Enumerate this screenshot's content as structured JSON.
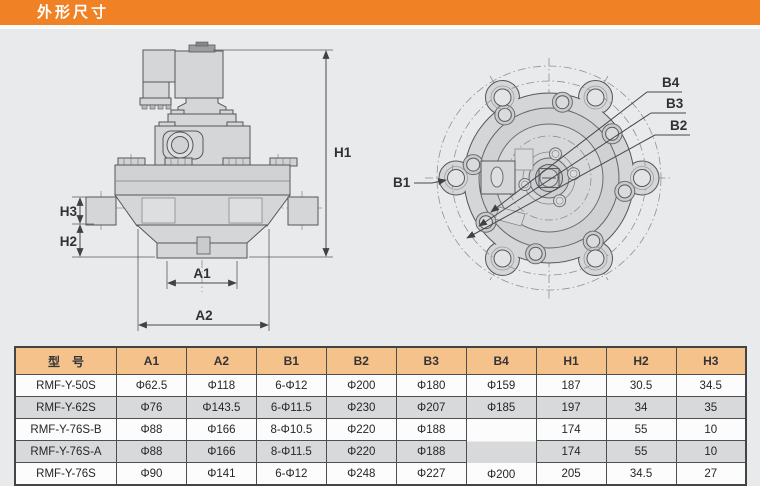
{
  "header": {
    "title": "外形尺寸"
  },
  "drawings": {
    "side": {
      "h1": "H1",
      "h2": "H2",
      "h3": "H3",
      "a1": "A1",
      "a2": "A2"
    },
    "front": {
      "b1": "B1",
      "b2": "B2",
      "b3": "B3",
      "b4": "B4"
    }
  },
  "table": {
    "columns": [
      "型　号",
      "A1",
      "A2",
      "B1",
      "B2",
      "B3",
      "B4",
      "H1",
      "H2",
      "H3"
    ],
    "rows": [
      [
        "RMF-Y-50S",
        "Φ62.5",
        "Φ118",
        "6-Φ12",
        "Φ200",
        "Φ180",
        "Φ159",
        "187",
        "30.5",
        "34.5"
      ],
      [
        "RMF-Y-62S",
        "Φ76",
        "Φ143.5",
        "6-Φ11.5",
        "Φ230",
        "Φ207",
        "Φ185",
        "197",
        "34",
        "35"
      ],
      [
        "RMF-Y-76S-B",
        "Φ88",
        "Φ166",
        "8-Φ10.5",
        "Φ220",
        "Φ188",
        "",
        "174",
        "55",
        "10"
      ],
      [
        "RMF-Y-76S-A",
        "Φ88",
        "Φ166",
        "8-Φ11.5",
        "Φ220",
        "Φ188",
        "",
        "174",
        "55",
        "10"
      ],
      [
        "RMF-Y-76S",
        "Φ90",
        "Φ141",
        "6-Φ12",
        "Φ248",
        "Φ227",
        "Φ200",
        "205",
        "34.5",
        "27"
      ]
    ],
    "merge": {
      "col": 6,
      "startRow": 2,
      "endRow": 4
    }
  },
  "colors": {
    "banner_orange": "#f08124",
    "table_header_bg": "#f5c28c",
    "row_alt": "#d8d9db",
    "panel_gray": "#e9eaec",
    "line": "#54575a",
    "metal_fill": "#d4d6d8"
  }
}
